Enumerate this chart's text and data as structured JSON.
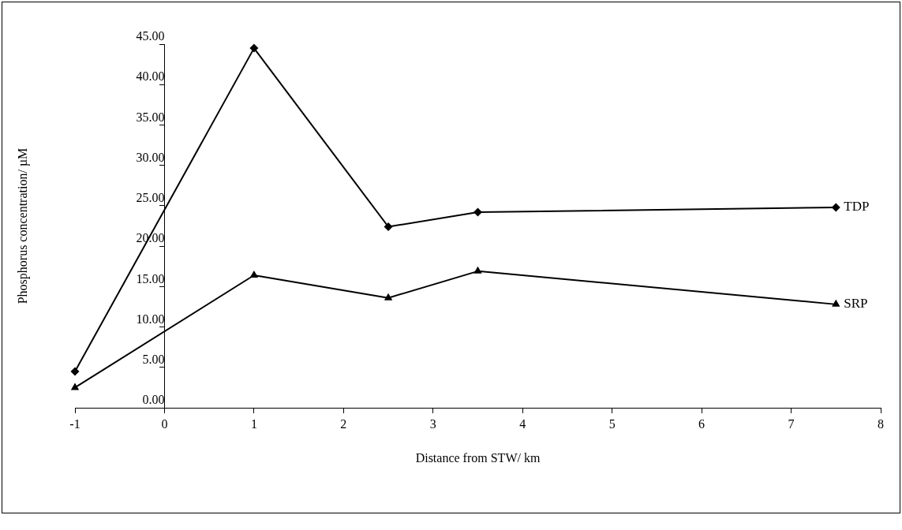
{
  "chart_data": {
    "type": "line",
    "xlabel": "Distance from STW/ km",
    "ylabel": "Phosphorus concentration/ µM",
    "x": [
      -1,
      1,
      2.5,
      3.5,
      7.5
    ],
    "series": [
      {
        "name": "TDP",
        "color": "#000000",
        "marker": "diamond",
        "values": [
          4.5,
          44.5,
          22.4,
          24.2,
          24.8
        ]
      },
      {
        "name": "SRP",
        "color": "#000000",
        "marker": "triangle",
        "values": [
          2.5,
          16.4,
          13.6,
          16.9,
          12.8
        ]
      }
    ],
    "xlim": [
      -1,
      8
    ],
    "xticks": [
      -1,
      0,
      1,
      2,
      3,
      4,
      5,
      6,
      7,
      8
    ],
    "ylim": [
      0,
      45
    ],
    "yticks": [
      {
        "value": 0,
        "label": "0.00"
      },
      {
        "value": 5,
        "label": "5.00"
      },
      {
        "value": 10,
        "label": "10.00"
      },
      {
        "value": 15,
        "label": "15.00"
      },
      {
        "value": 20,
        "label": "20.00"
      },
      {
        "value": 25,
        "label": "25.00"
      },
      {
        "value": 30,
        "label": "30.00"
      },
      {
        "value": 35,
        "label": "35.00"
      },
      {
        "value": 40,
        "label": "40.00"
      },
      {
        "value": 45,
        "label": "45.00"
      }
    ],
    "grid": false,
    "legend": false,
    "line_style": "solid"
  }
}
